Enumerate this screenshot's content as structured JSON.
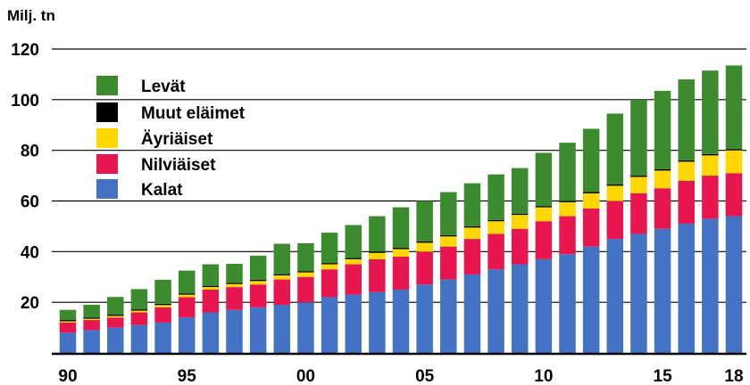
{
  "chart_data": {
    "type": "bar",
    "stacked": true,
    "unit_label": "Milj. tn",
    "x": [
      1990,
      1991,
      1992,
      1993,
      1994,
      1995,
      1996,
      1997,
      1998,
      1999,
      2000,
      2001,
      2002,
      2003,
      2004,
      2005,
      2006,
      2007,
      2008,
      2009,
      2010,
      2011,
      2012,
      2013,
      2014,
      2015,
      2016,
      2017,
      2018
    ],
    "x_tick_labels": [
      "90",
      "95",
      "00",
      "05",
      "10",
      "15",
      "18"
    ],
    "x_tick_years": [
      1990,
      1995,
      2000,
      2005,
      2010,
      2015,
      2018
    ],
    "ylim": [
      0,
      120
    ],
    "y_ticks": [
      20,
      40,
      60,
      80,
      100,
      120
    ],
    "grid": "horizontal",
    "legend_position": "top-left",
    "series": [
      {
        "name": "Kalat",
        "color": "#4472c4",
        "values": [
          8,
          9,
          10,
          11,
          12,
          14,
          16,
          17,
          18,
          19,
          20,
          22,
          23,
          24,
          25,
          27,
          29,
          31,
          33,
          35,
          37,
          39,
          42,
          45,
          47,
          49,
          51,
          53,
          54
        ]
      },
      {
        "name": "Nilviäiset",
        "color": "#e8164f",
        "values": [
          4,
          4,
          4,
          5,
          6,
          8,
          9,
          9,
          9,
          10,
          10,
          11,
          12,
          13,
          13,
          13,
          13,
          14,
          14,
          14,
          15,
          15,
          15,
          15,
          16,
          16,
          17,
          17,
          17
        ]
      },
      {
        "name": "Äyriäiset",
        "color": "#ffd700",
        "values": [
          0.5,
          0.5,
          0.6,
          0.7,
          0.9,
          1,
          1,
          1.2,
          1.4,
          1.6,
          1.8,
          2,
          2,
          2.5,
          3,
          3.5,
          4,
          4.5,
          5,
          5.5,
          5.5,
          5.5,
          6,
          6,
          6.5,
          7,
          7.5,
          8,
          9
        ]
      },
      {
        "name": "Muut eläimet",
        "color": "#000000",
        "values": [
          0.5,
          0.5,
          0.5,
          0.5,
          0.5,
          0.5,
          0.5,
          0.5,
          0.5,
          0.5,
          0.5,
          0.5,
          0.5,
          0.5,
          0.5,
          0.5,
          0.5,
          0.5,
          0.5,
          0.5,
          0.5,
          0.5,
          0.5,
          0.5,
          0.5,
          0.5,
          0.5,
          0.5,
          0.5
        ]
      },
      {
        "name": "Levät",
        "color": "#3d8b2f",
        "values": [
          4,
          5,
          7,
          8,
          9.5,
          9,
          8.5,
          7.5,
          9.5,
          12,
          11,
          12,
          13,
          14,
          16,
          16,
          17,
          17,
          18,
          18,
          21,
          23,
          25,
          28,
          30,
          31,
          32,
          33,
          33
        ]
      }
    ]
  }
}
